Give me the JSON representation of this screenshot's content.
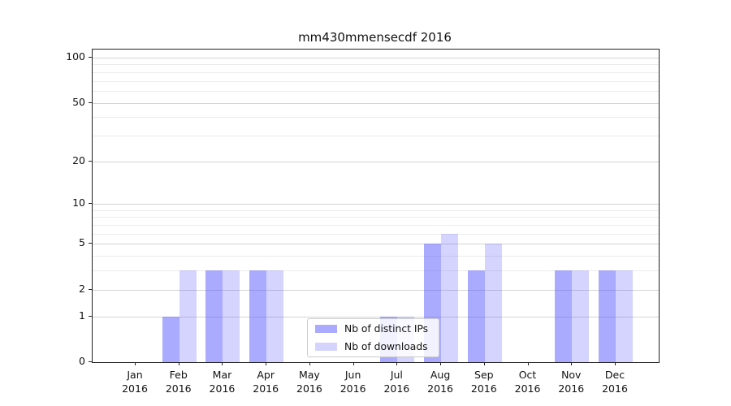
{
  "chart_data": {
    "type": "bar",
    "title": "mm430mmensecdf 2016",
    "categories": [
      "Jan",
      "Feb",
      "Mar",
      "Apr",
      "May",
      "Jun",
      "Jul",
      "Aug",
      "Sep",
      "Oct",
      "Nov",
      "Dec"
    ],
    "year": "2016",
    "series": [
      {
        "name": "Nb of distinct IPs",
        "color": "rgba(85,85,255,0.50)",
        "values": [
          0,
          1,
          3,
          3,
          0,
          0,
          1,
          5,
          3,
          0,
          3,
          3
        ]
      },
      {
        "name": "Nb of downloads",
        "color": "rgba(85,85,255,0.25)",
        "values": [
          0,
          3,
          3,
          3,
          0,
          0,
          1,
          6,
          5,
          0,
          3,
          3
        ]
      }
    ],
    "y_axis": {
      "scale": "log1p",
      "ticks": [
        0,
        1,
        2,
        5,
        10,
        20,
        50,
        100
      ],
      "minor_gridlines": [
        3,
        4,
        6,
        7,
        8,
        9,
        30,
        40,
        60,
        70,
        80,
        90
      ],
      "range_top": 113
    },
    "legend": {
      "position": "lower-center"
    },
    "grid": true,
    "colors": {
      "frame": "#222222",
      "grid_major": "#d4d4d4",
      "grid_minor": "#ececec",
      "text": "#111111"
    }
  }
}
